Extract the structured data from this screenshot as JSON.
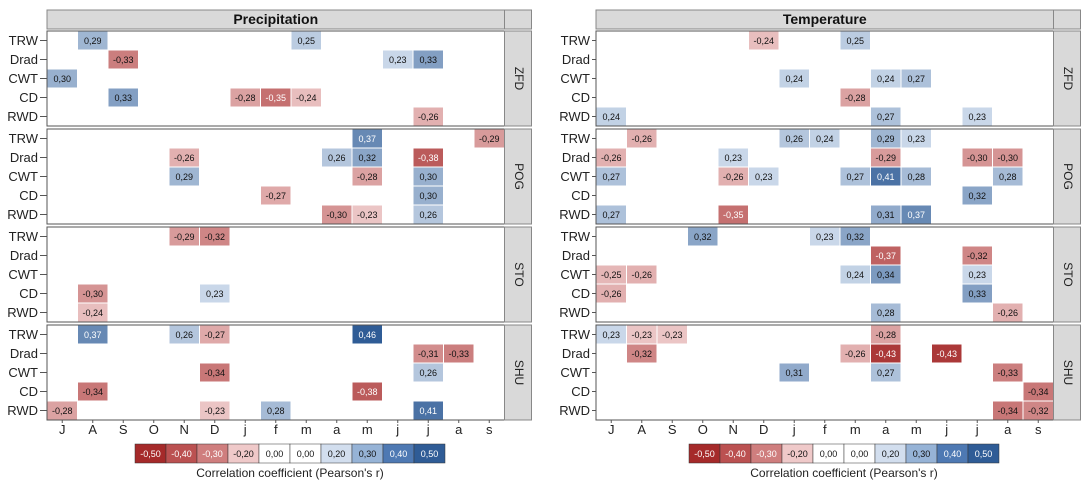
{
  "chart_data": [
    {
      "type": "heatmap",
      "title": "Precipitation",
      "x_tick_labels": [
        "J",
        "A",
        "S",
        "O",
        "N",
        "D",
        "j",
        "f",
        "m",
        "a",
        "m",
        "j",
        "j",
        "a",
        "s"
      ],
      "rows": [
        "TRW",
        "Drad",
        "CWT",
        "CD",
        "RWD"
      ],
      "sites": [
        "ZFD",
        "POG",
        "STO",
        "SHU"
      ],
      "colorbar_label": "Correlation coefficient (Pearson's r)",
      "cells": [
        {
          "site": "ZFD",
          "row": "TRW",
          "col": 1,
          "value": 0.29,
          "label": "0,29"
        },
        {
          "site": "ZFD",
          "row": "TRW",
          "col": 8,
          "value": 0.25,
          "label": "0,25"
        },
        {
          "site": "ZFD",
          "row": "Drad",
          "col": 2,
          "value": -0.33,
          "label": "-0,33"
        },
        {
          "site": "ZFD",
          "row": "Drad",
          "col": 11,
          "value": 0.23,
          "label": "0,23"
        },
        {
          "site": "ZFD",
          "row": "Drad",
          "col": 12,
          "value": 0.33,
          "label": "0,33"
        },
        {
          "site": "ZFD",
          "row": "CWT",
          "col": 0,
          "value": 0.3,
          "label": "0,30"
        },
        {
          "site": "ZFD",
          "row": "CD",
          "col": 2,
          "value": 0.33,
          "label": "0,33"
        },
        {
          "site": "ZFD",
          "row": "CD",
          "col": 6,
          "value": -0.28,
          "label": "-0,28"
        },
        {
          "site": "ZFD",
          "row": "CD",
          "col": 7,
          "value": -0.35,
          "label": "-0,35"
        },
        {
          "site": "ZFD",
          "row": "CD",
          "col": 8,
          "value": -0.24,
          "label": "-0,24"
        },
        {
          "site": "ZFD",
          "row": "RWD",
          "col": 12,
          "value": -0.26,
          "label": "-0,26"
        },
        {
          "site": "POG",
          "row": "TRW",
          "col": 10,
          "value": 0.37,
          "label": "0,37"
        },
        {
          "site": "POG",
          "row": "TRW",
          "col": 14,
          "value": -0.29,
          "label": "-0,29"
        },
        {
          "site": "POG",
          "row": "Drad",
          "col": 4,
          "value": -0.26,
          "label": "-0,26"
        },
        {
          "site": "POG",
          "row": "Drad",
          "col": 9,
          "value": 0.26,
          "label": "0,26"
        },
        {
          "site": "POG",
          "row": "Drad",
          "col": 10,
          "value": 0.32,
          "label": "0,32"
        },
        {
          "site": "POG",
          "row": "Drad",
          "col": 12,
          "value": -0.38,
          "label": "-0,38"
        },
        {
          "site": "POG",
          "row": "CWT",
          "col": 4,
          "value": 0.29,
          "label": "0,29"
        },
        {
          "site": "POG",
          "row": "CWT",
          "col": 10,
          "value": -0.28,
          "label": "-0,28"
        },
        {
          "site": "POG",
          "row": "CWT",
          "col": 12,
          "value": 0.3,
          "label": "0,30"
        },
        {
          "site": "POG",
          "row": "CD",
          "col": 7,
          "value": -0.27,
          "label": "-0,27"
        },
        {
          "site": "POG",
          "row": "CD",
          "col": 12,
          "value": 0.3,
          "label": "0,30"
        },
        {
          "site": "POG",
          "row": "RWD",
          "col": 9,
          "value": -0.3,
          "label": "-0,30"
        },
        {
          "site": "POG",
          "row": "RWD",
          "col": 10,
          "value": -0.23,
          "label": "-0,23"
        },
        {
          "site": "POG",
          "row": "RWD",
          "col": 12,
          "value": 0.26,
          "label": "0,26"
        },
        {
          "site": "STO",
          "row": "TRW",
          "col": 4,
          "value": -0.29,
          "label": "-0,29"
        },
        {
          "site": "STO",
          "row": "TRW",
          "col": 5,
          "value": -0.32,
          "label": "-0,32"
        },
        {
          "site": "STO",
          "row": "CD",
          "col": 1,
          "value": -0.3,
          "label": "-0,30"
        },
        {
          "site": "STO",
          "row": "CD",
          "col": 5,
          "value": 0.23,
          "label": "0,23"
        },
        {
          "site": "STO",
          "row": "RWD",
          "col": 1,
          "value": -0.24,
          "label": "-0,24"
        },
        {
          "site": "SHU",
          "row": "TRW",
          "col": 1,
          "value": 0.37,
          "label": "0,37"
        },
        {
          "site": "SHU",
          "row": "TRW",
          "col": 4,
          "value": 0.26,
          "label": "0,26"
        },
        {
          "site": "SHU",
          "row": "TRW",
          "col": 5,
          "value": -0.27,
          "label": "-0,27"
        },
        {
          "site": "SHU",
          "row": "TRW",
          "col": 10,
          "value": 0.46,
          "label": "0,46"
        },
        {
          "site": "SHU",
          "row": "Drad",
          "col": 12,
          "value": -0.31,
          "label": "-0,31"
        },
        {
          "site": "SHU",
          "row": "Drad",
          "col": 13,
          "value": -0.33,
          "label": "-0,33"
        },
        {
          "site": "SHU",
          "row": "CWT",
          "col": 5,
          "value": -0.34,
          "label": "-0,34"
        },
        {
          "site": "SHU",
          "row": "CWT",
          "col": 12,
          "value": 0.26,
          "label": "0,26"
        },
        {
          "site": "SHU",
          "row": "CD",
          "col": 1,
          "value": -0.34,
          "label": "-0,34"
        },
        {
          "site": "SHU",
          "row": "CD",
          "col": 10,
          "value": -0.38,
          "label": "-0,38"
        },
        {
          "site": "SHU",
          "row": "RWD",
          "col": 0,
          "value": -0.28,
          "label": "-0,28"
        },
        {
          "site": "SHU",
          "row": "RWD",
          "col": 5,
          "value": -0.23,
          "label": "-0,23"
        },
        {
          "site": "SHU",
          "row": "RWD",
          "col": 7,
          "value": 0.28,
          "label": "0,28"
        },
        {
          "site": "SHU",
          "row": "RWD",
          "col": 12,
          "value": 0.41,
          "label": "0,41"
        }
      ]
    },
    {
      "type": "heatmap",
      "title": "Temperature",
      "x_tick_labels": [
        "J",
        "A",
        "S",
        "O",
        "N",
        "D",
        "j",
        "f",
        "m",
        "a",
        "m",
        "j",
        "j",
        "a",
        "s"
      ],
      "rows": [
        "TRW",
        "Drad",
        "CWT",
        "CD",
        "RWD"
      ],
      "sites": [
        "ZFD",
        "POG",
        "STO",
        "SHU"
      ],
      "colorbar_label": "Correlation coefficient (Pearson's r)",
      "cells": [
        {
          "site": "ZFD",
          "row": "TRW",
          "col": 5,
          "value": -0.24,
          "label": "-0,24"
        },
        {
          "site": "ZFD",
          "row": "TRW",
          "col": 8,
          "value": 0.25,
          "label": "0,25"
        },
        {
          "site": "ZFD",
          "row": "CWT",
          "col": 6,
          "value": 0.24,
          "label": "0,24"
        },
        {
          "site": "ZFD",
          "row": "CWT",
          "col": 9,
          "value": 0.24,
          "label": "0,24"
        },
        {
          "site": "ZFD",
          "row": "CWT",
          "col": 10,
          "value": 0.27,
          "label": "0,27"
        },
        {
          "site": "ZFD",
          "row": "CD",
          "col": 8,
          "value": -0.28,
          "label": "-0,28"
        },
        {
          "site": "ZFD",
          "row": "RWD",
          "col": 0,
          "value": 0.24,
          "label": "0,24"
        },
        {
          "site": "ZFD",
          "row": "RWD",
          "col": 9,
          "value": 0.27,
          "label": "0,27"
        },
        {
          "site": "ZFD",
          "row": "RWD",
          "col": 12,
          "value": 0.23,
          "label": "0,23"
        },
        {
          "site": "POG",
          "row": "TRW",
          "col": 1,
          "value": -0.26,
          "label": "-0,26"
        },
        {
          "site": "POG",
          "row": "TRW",
          "col": 6,
          "value": 0.26,
          "label": "0,26"
        },
        {
          "site": "POG",
          "row": "TRW",
          "col": 7,
          "value": 0.24,
          "label": "0,24"
        },
        {
          "site": "POG",
          "row": "TRW",
          "col": 9,
          "value": 0.29,
          "label": "0,29"
        },
        {
          "site": "POG",
          "row": "TRW",
          "col": 10,
          "value": 0.23,
          "label": "0,23"
        },
        {
          "site": "POG",
          "row": "Drad",
          "col": 0,
          "value": -0.26,
          "label": "-0,26"
        },
        {
          "site": "POG",
          "row": "Drad",
          "col": 4,
          "value": 0.23,
          "label": "0,23"
        },
        {
          "site": "POG",
          "row": "Drad",
          "col": 9,
          "value": -0.29,
          "label": "-0,29"
        },
        {
          "site": "POG",
          "row": "Drad",
          "col": 12,
          "value": -0.3,
          "label": "-0,30"
        },
        {
          "site": "POG",
          "row": "Drad",
          "col": 13,
          "value": -0.3,
          "label": "-0,30"
        },
        {
          "site": "POG",
          "row": "CWT",
          "col": 0,
          "value": 0.27,
          "label": "0,27"
        },
        {
          "site": "POG",
          "row": "CWT",
          "col": 4,
          "value": -0.26,
          "label": "-0,26"
        },
        {
          "site": "POG",
          "row": "CWT",
          "col": 5,
          "value": 0.23,
          "label": "0,23"
        },
        {
          "site": "POG",
          "row": "CWT",
          "col": 8,
          "value": 0.27,
          "label": "0,27"
        },
        {
          "site": "POG",
          "row": "CWT",
          "col": 9,
          "value": 0.41,
          "label": "0,41"
        },
        {
          "site": "POG",
          "row": "CWT",
          "col": 10,
          "value": 0.28,
          "label": "0,28"
        },
        {
          "site": "POG",
          "row": "CWT",
          "col": 13,
          "value": 0.28,
          "label": "0,28"
        },
        {
          "site": "POG",
          "row": "CD",
          "col": 12,
          "value": 0.32,
          "label": "0,32"
        },
        {
          "site": "POG",
          "row": "RWD",
          "col": 0,
          "value": 0.27,
          "label": "0,27"
        },
        {
          "site": "POG",
          "row": "RWD",
          "col": 4,
          "value": -0.35,
          "label": "-0,35"
        },
        {
          "site": "POG",
          "row": "RWD",
          "col": 9,
          "value": 0.31,
          "label": "0,31"
        },
        {
          "site": "POG",
          "row": "RWD",
          "col": 10,
          "value": 0.37,
          "label": "0,37"
        },
        {
          "site": "STO",
          "row": "TRW",
          "col": 3,
          "value": 0.32,
          "label": "0,32"
        },
        {
          "site": "STO",
          "row": "TRW",
          "col": 7,
          "value": 0.23,
          "label": "0,23"
        },
        {
          "site": "STO",
          "row": "TRW",
          "col": 8,
          "value": 0.32,
          "label": "0,32"
        },
        {
          "site": "STO",
          "row": "Drad",
          "col": 9,
          "value": -0.37,
          "label": "-0,37"
        },
        {
          "site": "STO",
          "row": "Drad",
          "col": 12,
          "value": -0.32,
          "label": "-0,32"
        },
        {
          "site": "STO",
          "row": "CWT",
          "col": 0,
          "value": -0.25,
          "label": "-0,25"
        },
        {
          "site": "STO",
          "row": "CWT",
          "col": 1,
          "value": -0.26,
          "label": "-0,26"
        },
        {
          "site": "STO",
          "row": "CWT",
          "col": 8,
          "value": 0.24,
          "label": "0,24"
        },
        {
          "site": "STO",
          "row": "CWT",
          "col": 9,
          "value": 0.34,
          "label": "0,34"
        },
        {
          "site": "STO",
          "row": "CWT",
          "col": 12,
          "value": 0.23,
          "label": "0,23"
        },
        {
          "site": "STO",
          "row": "CD",
          "col": 0,
          "value": -0.26,
          "label": "-0,26"
        },
        {
          "site": "STO",
          "row": "CD",
          "col": 12,
          "value": 0.33,
          "label": "0,33"
        },
        {
          "site": "STO",
          "row": "RWD",
          "col": 9,
          "value": 0.28,
          "label": "0,28"
        },
        {
          "site": "STO",
          "row": "RWD",
          "col": 13,
          "value": -0.26,
          "label": "-0,26"
        },
        {
          "site": "SHU",
          "row": "TRW",
          "col": 0,
          "value": 0.23,
          "label": "0,23"
        },
        {
          "site": "SHU",
          "row": "TRW",
          "col": 1,
          "value": -0.23,
          "label": "-0,23"
        },
        {
          "site": "SHU",
          "row": "TRW",
          "col": 2,
          "value": -0.23,
          "label": "-0,23"
        },
        {
          "site": "SHU",
          "row": "TRW",
          "col": 9,
          "value": -0.28,
          "label": "-0,28"
        },
        {
          "site": "SHU",
          "row": "Drad",
          "col": 1,
          "value": -0.32,
          "label": "-0,32"
        },
        {
          "site": "SHU",
          "row": "Drad",
          "col": 8,
          "value": -0.26,
          "label": "-0,26"
        },
        {
          "site": "SHU",
          "row": "Drad",
          "col": 9,
          "value": -0.43,
          "label": "-0,43"
        },
        {
          "site": "SHU",
          "row": "Drad",
          "col": 11,
          "value": -0.43,
          "label": "-0,43"
        },
        {
          "site": "SHU",
          "row": "CWT",
          "col": 6,
          "value": 0.31,
          "label": "0,31"
        },
        {
          "site": "SHU",
          "row": "CWT",
          "col": 9,
          "value": 0.27,
          "label": "0,27"
        },
        {
          "site": "SHU",
          "row": "CWT",
          "col": 13,
          "value": -0.33,
          "label": "-0,33"
        },
        {
          "site": "SHU",
          "row": "CD",
          "col": 14,
          "value": -0.34,
          "label": "-0,34"
        },
        {
          "site": "SHU",
          "row": "RWD",
          "col": 13,
          "value": -0.34,
          "label": "-0,34"
        },
        {
          "site": "SHU",
          "row": "RWD",
          "col": 14,
          "value": -0.32,
          "label": "-0,32"
        }
      ]
    }
  ],
  "colorbar": {
    "labels": [
      "-0,50",
      "-0,40",
      "-0,30",
      "-0,20",
      "0,00",
      "0,00",
      "0,20",
      "0,30",
      "0,40",
      "0,50"
    ],
    "colors": [
      "#a52a2a",
      "#bb5151",
      "#cf7e7e",
      "#efc9c9",
      "#ffffff",
      "#ffffff",
      "#d2deee",
      "#96b3d6",
      "#4e79b3",
      "#2f5c96"
    ]
  },
  "palette": {
    "negative_strong": "#a52a2a",
    "positive_strong": "#2f5c96",
    "strip_fill": "#d9d9d9"
  }
}
